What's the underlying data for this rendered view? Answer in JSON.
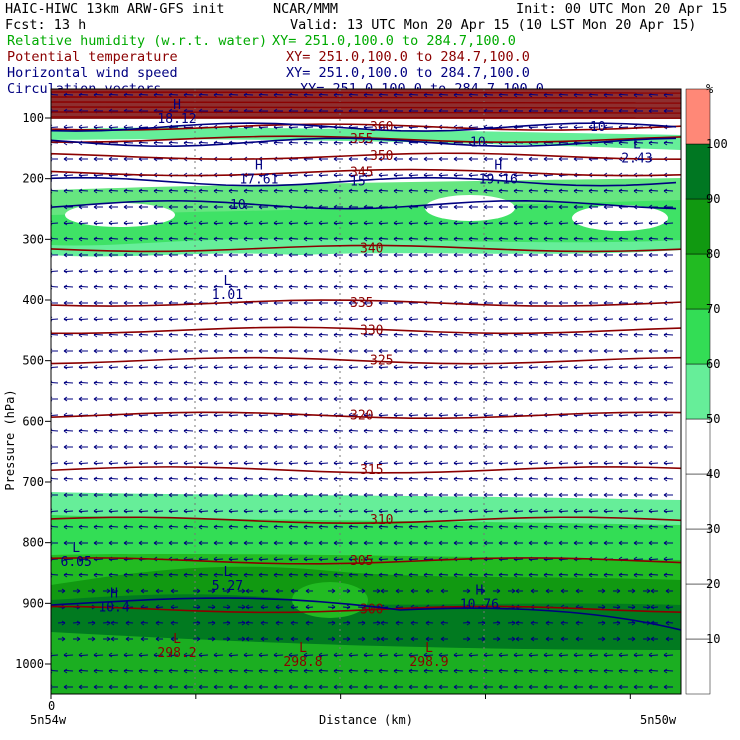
{
  "header": {
    "model": "HAIC-HIWC 13km ARW-GFS init",
    "institution": "NCAR/MMM",
    "init": "Init: 00 UTC Mon 20 Apr 15",
    "fcst": "Fcst:   13 h",
    "valid": "Valid: 13 UTC Mon 20 Apr 15 (10 LST Mon 20 Apr 15)"
  },
  "fields": [
    {
      "name": "Relative humidity (w.r.t. water)",
      "xy": "XY= 251.0,100.0 to 284.7,100.0",
      "color": "#00aa00"
    },
    {
      "name": "Potential temperature",
      "xy": "XY= 251.0,100.0 to 284.7,100.0",
      "color": "#8b0000"
    },
    {
      "name": "Horizontal wind speed",
      "xy": "XY= 251.0,100.0 to 284.7,100.0",
      "color": "#000080"
    },
    {
      "name": "Circulation vectors",
      "xy": "XY= 251.0,100.0 to 284.7,100.0",
      "color": "#000080"
    }
  ],
  "chart_data": {
    "type": "heatmap",
    "xlabel": "Distance (km)",
    "ylabel": "Pressure (hPa)",
    "x_start_label": "5n54w",
    "x_end_label": "5n50w",
    "x_tick_label": "0",
    "yticks": [
      100,
      200,
      300,
      400,
      500,
      600,
      700,
      800,
      900,
      1000
    ],
    "ylim": [
      1050,
      70
    ],
    "colorbar": {
      "unit": "%",
      "levels": [
        10,
        20,
        30,
        40,
        50,
        60,
        70,
        80,
        90,
        100
      ],
      "colors": [
        "#ffffff",
        "#ffffff",
        "#ffffff",
        "#ffffff",
        "#ffffff",
        "#66ee99",
        "#33dd55",
        "#22bb22",
        "#119911",
        "#007722",
        "#ff8877"
      ]
    },
    "theta_contours": [
      {
        "label": "335",
        "p": 405
      },
      {
        "label": "330",
        "p": 450
      },
      {
        "label": "325",
        "p": 500
      },
      {
        "label": "320",
        "p": 590
      },
      {
        "label": "315",
        "p": 680
      },
      {
        "label": "310",
        "p": 763
      },
      {
        "label": "305",
        "p": 830
      },
      {
        "label": "300",
        "p": 910
      },
      {
        "label": "350",
        "p": 163
      },
      {
        "label": "345",
        "p": 190
      },
      {
        "label": "340",
        "p": 315
      },
      {
        "label": "360",
        "p": 115
      },
      {
        "label": "355",
        "p": 135
      }
    ],
    "wind_contours": [
      {
        "label": "10",
        "p": 243
      },
      {
        "label": "15",
        "p": 205
      },
      {
        "label": "10",
        "p": 140
      },
      {
        "label": "10",
        "p": 115
      }
    ],
    "extrema": [
      {
        "type": "H",
        "value": "18.12",
        "x": 0.2,
        "p": 95
      },
      {
        "type": "L",
        "value": "2.43",
        "x": 0.93,
        "p": 160
      },
      {
        "type": "H",
        "value": "17.61",
        "x": 0.33,
        "p": 195
      },
      {
        "type": "H",
        "value": "19.16",
        "x": 0.71,
        "p": 195
      },
      {
        "type": "L",
        "value": "1.01",
        "x": 0.28,
        "p": 385
      },
      {
        "type": "L",
        "value": "6.05",
        "x": 0.04,
        "p": 825
      },
      {
        "type": "L",
        "value": "5.27",
        "x": 0.28,
        "p": 865
      },
      {
        "type": "H",
        "value": "10.4",
        "x": 0.1,
        "p": 900
      },
      {
        "type": "H",
        "value": "10.76",
        "x": 0.68,
        "p": 895
      },
      {
        "type": "L",
        "value": "298.2",
        "x": 0.2,
        "p": 975
      },
      {
        "type": "L",
        "value": "298.8",
        "x": 0.4,
        "p": 990
      },
      {
        "type": "L",
        "value": "298.9",
        "x": 0.6,
        "p": 990
      }
    ]
  }
}
